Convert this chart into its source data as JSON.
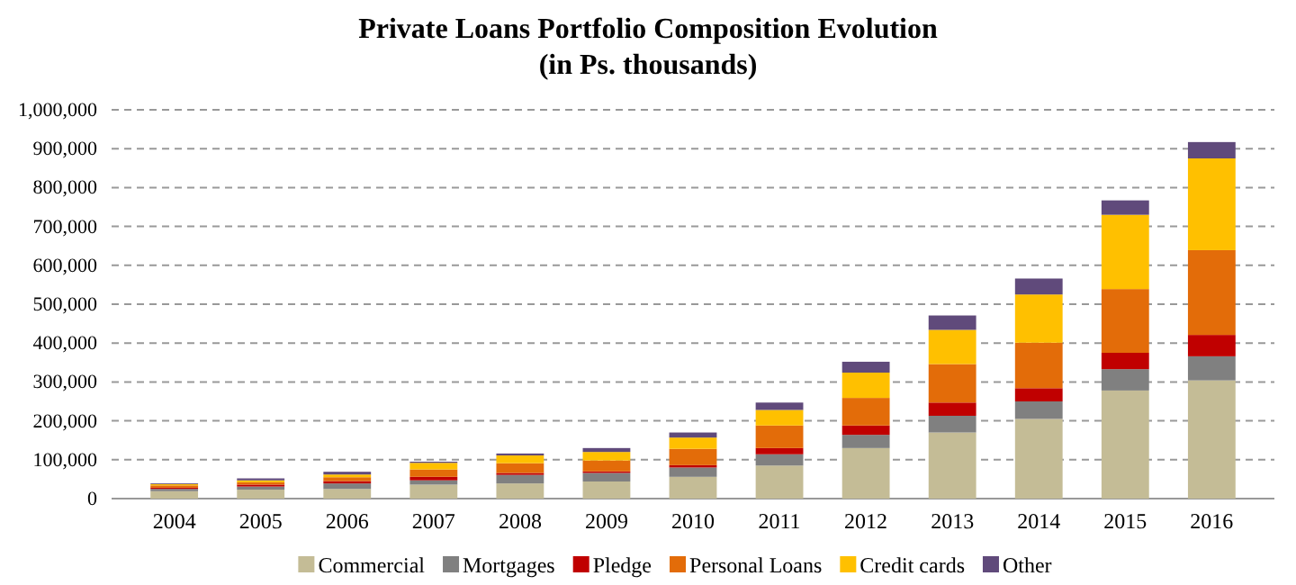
{
  "chart_data": {
    "type": "bar",
    "stacked": true,
    "title": "Private Loans Portfolio Composition Evolution",
    "subtitle": "(in Ps. thousands)",
    "categories": [
      "2004",
      "2005",
      "2006",
      "2007",
      "2008",
      "2009",
      "2010",
      "2011",
      "2012",
      "2013",
      "2014",
      "2015",
      "2016"
    ],
    "series": [
      {
        "name": "Commercial",
        "color": "#c4bc96",
        "values": [
          19000,
          23000,
          25000,
          36000,
          39000,
          44000,
          56000,
          85000,
          130000,
          170000,
          205000,
          278000,
          304000
        ]
      },
      {
        "name": "Mortgages",
        "color": "#808080",
        "values": [
          6000,
          8000,
          14000,
          11000,
          22000,
          22000,
          24000,
          29000,
          34000,
          43000,
          45000,
          55000,
          62000
        ]
      },
      {
        "name": "Pledge",
        "color": "#c00000",
        "values": [
          3000,
          5000,
          6000,
          9000,
          5000,
          4000,
          6000,
          16000,
          24000,
          34000,
          34000,
          42000,
          55000
        ]
      },
      {
        "name": "Personal Loans",
        "color": "#e36c09",
        "values": [
          6000,
          6000,
          10000,
          19000,
          25000,
          28000,
          42000,
          58000,
          71000,
          99000,
          117000,
          164000,
          218000
        ]
      },
      {
        "name": "Credit cards",
        "color": "#ffc000",
        "values": [
          3000,
          5000,
          7000,
          17000,
          20000,
          22000,
          29000,
          40000,
          65000,
          88000,
          124000,
          191000,
          236000
        ]
      },
      {
        "name": "Other",
        "color": "#604a7b",
        "values": [
          2000,
          5000,
          7000,
          3000,
          5000,
          10000,
          13000,
          19000,
          28000,
          37000,
          41000,
          37000,
          42000
        ]
      }
    ],
    "ylim": [
      0,
      1000000
    ],
    "yticks": [
      {
        "value": 0,
        "label": "0"
      },
      {
        "value": 100000,
        "label": "100,000"
      },
      {
        "value": 200000,
        "label": "200,000"
      },
      {
        "value": 300000,
        "label": "300,000"
      },
      {
        "value": 400000,
        "label": "400,000"
      },
      {
        "value": 500000,
        "label": "500,000"
      },
      {
        "value": 600000,
        "label": "600,000"
      },
      {
        "value": 700000,
        "label": "700,000"
      },
      {
        "value": 800000,
        "label": "800,000"
      },
      {
        "value": 900000,
        "label": "900,000"
      },
      {
        "value": 1000000,
        "label": "1,000,000"
      }
    ],
    "grid": "y",
    "legend": "bottom"
  }
}
